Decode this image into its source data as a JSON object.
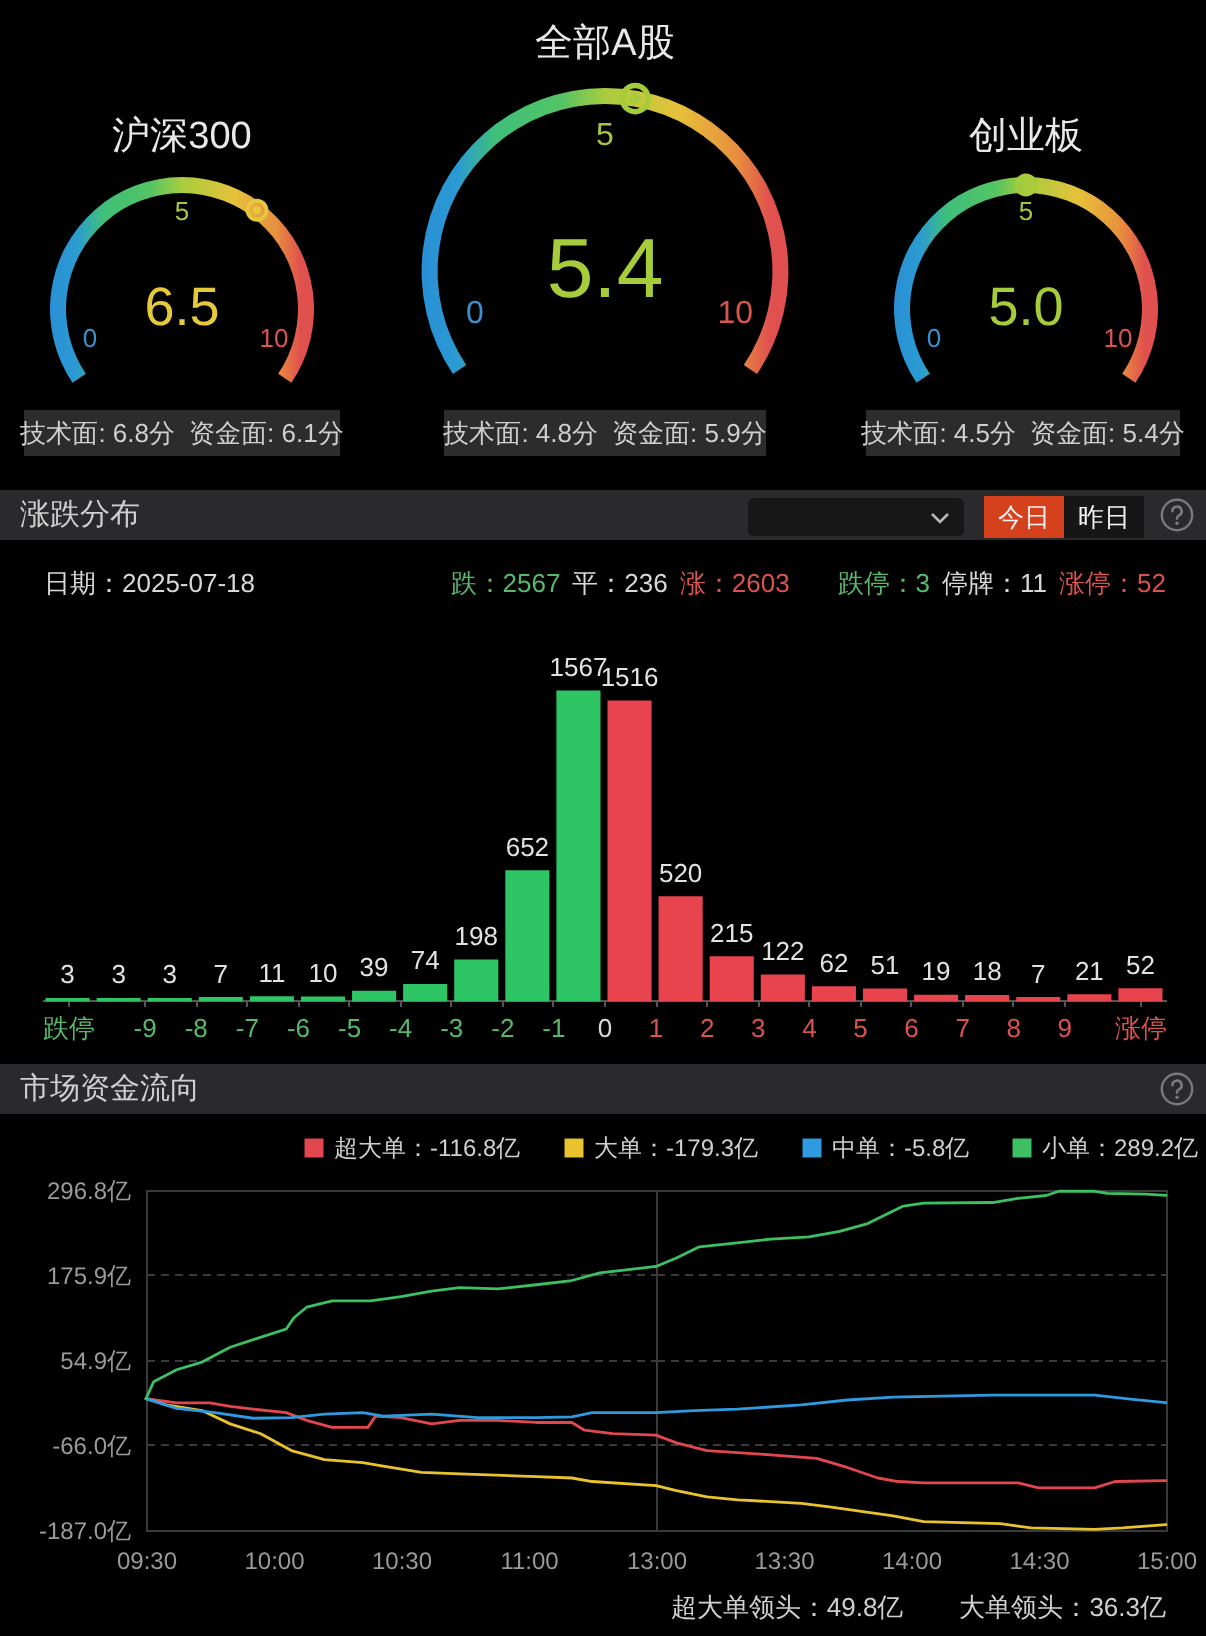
{
  "chart_data": [
    {
      "type": "other",
      "title": "沪深300",
      "values": [
        6.5
      ],
      "value_labels": [
        "6.5"
      ],
      "color": "#e5c83c",
      "annotations": [
        "0",
        "5",
        "10",
        "技术面: 6.8分",
        "资金面: 6.1分"
      ]
    },
    {
      "type": "other",
      "title": "全部A股",
      "values": [
        5.4
      ],
      "value_labels": [
        "5.4"
      ],
      "color": "#a6cc3c",
      "annotations": [
        "0",
        "5",
        "10",
        "技术面: 4.8分",
        "资金面: 5.9分"
      ]
    },
    {
      "type": "other",
      "title": "创业板",
      "values": [
        5.0
      ],
      "value_labels": [
        "5.0"
      ],
      "color": "#a6cc3c",
      "annotations": [
        "0",
        "5",
        "10",
        "技术面: 4.5分",
        "资金面: 5.4分"
      ]
    },
    {
      "type": "bar",
      "title": "涨跌分布",
      "annotations": [
        "今日",
        "昨日",
        "日期：2025-07-18",
        "跌：2567",
        "平：236",
        "涨：2603",
        "跌停：3",
        "停牌：11",
        "涨停：52"
      ],
      "x": [
        -10.5,
        -9.5,
        -8.5,
        -7.5,
        -6.5,
        -5.5,
        -4.5,
        -3.5,
        -2.5,
        -1.5,
        -0.5,
        0.5,
        1.5,
        2.5,
        3.5,
        4.5,
        5.5,
        6.5,
        7.5,
        8.5,
        9.5,
        10.5
      ],
      "values": [
        3,
        3,
        3,
        7,
        11,
        10,
        39,
        74,
        198,
        652,
        1567,
        1516,
        520,
        215,
        122,
        62,
        51,
        19,
        18,
        7,
        21,
        52
      ],
      "colors": [
        "#2ec565",
        "#2ec565",
        "#2ec565",
        "#2ec565",
        "#2ec565",
        "#2ec565",
        "#2ec565",
        "#2ec565",
        "#2ec565",
        "#2ec565",
        "#2ec565",
        "#e8444d",
        "#e8444d",
        "#e8444d",
        "#e8444d",
        "#e8444d",
        "#e8444d",
        "#e8444d",
        "#e8444d",
        "#e8444d",
        "#e8444d",
        "#e8444d"
      ],
      "xlim": [
        -11,
        11
      ],
      "xticks": [
        {
          "value": -10.5,
          "label": "跌停"
        },
        -9,
        -8,
        -7,
        -6,
        -5,
        -4,
        -3,
        -2,
        -1,
        0,
        1,
        2,
        3,
        4,
        5,
        6,
        7,
        8,
        9,
        {
          "value": 10.5,
          "label": "涨停"
        }
      ],
      "data_labels": true,
      "tick_labels": "x"
    },
    {
      "type": "line",
      "title": "市场资金流向",
      "series": [
        {
          "name": "超大单：-116.8亿",
          "color": "#e2474f",
          "x": [
            9.5,
            9.62,
            9.75,
            9.83,
            9.92,
            10.05,
            10.13,
            10.23,
            10.37,
            10.4,
            10.5,
            10.62,
            10.73,
            10.88,
            11.03,
            11.17,
            11.22,
            11.33,
            11.5
          ],
          "values": [
            0,
            -6,
            -6,
            -11,
            -15,
            -20,
            -31,
            -41,
            -41,
            -25,
            -27,
            -36,
            -31,
            -31,
            -34,
            -34,
            -45,
            -50,
            -52
          ]
        },
        {
          "name": "大单：-179.3亿",
          "color": "#e8c32e",
          "x": [
            9.5,
            9.58,
            9.72,
            9.83,
            9.95,
            10.07,
            10.2,
            10.35,
            10.43,
            10.58,
            10.73,
            11.03,
            11.17,
            11.25,
            11.5
          ],
          "values": [
            0,
            -9,
            -17,
            -36,
            -50,
            -74,
            -87,
            -91,
            -96,
            -105,
            -107,
            -111,
            -113,
            -118,
            -124
          ]
        },
        {
          "name": "中单：-5.8亿",
          "color": "#2e9be0",
          "x": [
            9.5,
            9.62,
            9.77,
            9.92,
            10.07,
            10.2,
            10.35,
            10.43,
            10.62,
            10.8,
            11.03,
            11.17,
            11.25,
            11.5
          ],
          "values": [
            0,
            -14,
            -20,
            -28,
            -27,
            -22,
            -20,
            -25,
            -22,
            -27,
            -27,
            -26,
            -20,
            -20
          ]
        },
        {
          "name": "小单：289.2亿",
          "color": "#3cc061",
          "x": [
            9.5,
            9.53,
            9.62,
            9.72,
            9.83,
            9.93,
            10.05,
            10.08,
            10.13,
            10.23,
            10.38,
            10.5,
            10.62,
            10.73,
            10.88,
            11.03,
            11.17,
            11.28,
            11.4,
            11.5
          ],
          "values": [
            0,
            24,
            41,
            52,
            73,
            85,
            99,
            115,
            130,
            139,
            139,
            145,
            153,
            158,
            156,
            162,
            168,
            179,
            184,
            188
          ]
        }
      ],
      "xlim": [
        9.5,
        11.5
      ],
      "xticks": [
        {
          "value": 9.5,
          "label": "09:30"
        },
        {
          "value": 10,
          "label": "10:00"
        },
        {
          "value": 10.5,
          "label": "10:30"
        },
        {
          "value": 11,
          "label": "11:00"
        }
      ],
      "ylim": [
        -187.0,
        296.8
      ],
      "yticks": [
        {
          "value": 296.8,
          "label": "296.8亿"
        },
        {
          "value": 175.9,
          "label": "175.9亿"
        },
        {
          "value": 54.9,
          "label": "54.9亿"
        },
        {
          "value": -66.0,
          "label": "-66.0亿"
        },
        {
          "value": -187.0,
          "label": "-187.0亿"
        }
      ],
      "grid": "y",
      "legend": "top"
    },
    {
      "type": "line",
      "annotations": [
        "超大单领头：49.8亿",
        "大单领头：36.3亿"
      ],
      "series": [
        {
          "color": "#e2474f",
          "x": [
            13,
            13.08,
            13.2,
            13.45,
            13.63,
            13.75,
            13.87,
            13.95,
            14.05,
            14.42,
            14.5,
            14.72,
            14.8,
            15
          ],
          "values": [
            -52,
            -63,
            -74,
            -80,
            -85,
            -98,
            -113,
            -118,
            -120,
            -120,
            -127,
            -127,
            -118,
            -116.8
          ]
        },
        {
          "color": "#e8c32e",
          "x": [
            13,
            13.08,
            13.2,
            13.32,
            13.57,
            13.68,
            13.93,
            14.05,
            14.35,
            14.47,
            14.72,
            14.83,
            15
          ],
          "values": [
            -124,
            -131,
            -140,
            -144,
            -149,
            -154,
            -167,
            -175,
            -178,
            -184,
            -186,
            -184,
            -179.3
          ]
        },
        {
          "color": "#2e9be0",
          "x": [
            13,
            13.15,
            13.32,
            13.57,
            13.75,
            13.93,
            14.32,
            14.72,
            14.87,
            15
          ],
          "values": [
            -20,
            -17,
            -15,
            -9,
            -2,
            2,
            5,
            5,
            -1,
            -5.8
          ]
        },
        {
          "color": "#3cc061",
          "x": [
            13,
            13.08,
            13.17,
            13.3,
            13.45,
            13.6,
            13.72,
            13.83,
            13.97,
            14.05,
            14.32,
            14.42,
            14.53,
            14.58,
            14.72,
            14.77,
            14.92,
            15
          ],
          "values": [
            188,
            200,
            216,
            221,
            227,
            230,
            238,
            249,
            274,
            278,
            279,
            285,
            289,
            295,
            295,
            292,
            291,
            289.2
          ]
        }
      ],
      "xlim": [
        13,
        15
      ],
      "xticks": [
        {
          "value": 13,
          "label": "13:00"
        },
        {
          "value": 13.5,
          "label": "13:30"
        },
        {
          "value": 14,
          "label": "14:00"
        },
        {
          "value": 14.5,
          "label": "14:30"
        },
        {
          "value": 15,
          "label": "15:00"
        }
      ],
      "ylim": [
        -187.0,
        296.8
      ],
      "yticks": [
        296.8,
        175.9,
        54.9,
        -66.0,
        -187.0
      ],
      "grid": "y",
      "tick_labels": "x"
    }
  ]
}
